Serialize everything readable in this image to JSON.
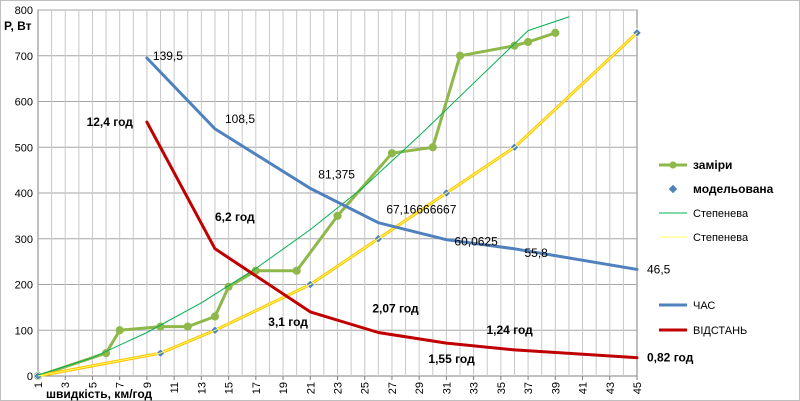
{
  "chart_data": {
    "type": "line",
    "xlabel": "швидкість, км/год",
    "ylabel": "P, Вт",
    "ylim": [
      0,
      800
    ],
    "yticks": [
      0,
      100,
      200,
      300,
      400,
      500,
      600,
      700,
      800
    ],
    "xticks": [
      1,
      3,
      5,
      7,
      9,
      11,
      13,
      15,
      17,
      19,
      21,
      23,
      25,
      27,
      29,
      31,
      33,
      35,
      37,
      39,
      41,
      43,
      45
    ],
    "xlim": [
      1,
      45
    ],
    "grid": true,
    "legend_position": "right",
    "series": [
      {
        "name": "заміри",
        "color": "#8fb84a",
        "marker": "circle",
        "x": [
          1,
          6,
          7,
          10,
          12,
          14,
          15,
          17,
          20,
          23,
          27,
          30,
          32,
          36,
          37,
          39
        ],
        "y": [
          0,
          50,
          100,
          108,
          108,
          130,
          195,
          230,
          230,
          350,
          487,
          500,
          700,
          722,
          730,
          750
        ]
      },
      {
        "name": "модельована",
        "color": "#ffc000",
        "marker": "diamond",
        "marker_color": "#4f81bd",
        "x": [
          1,
          10,
          14,
          21,
          26,
          31,
          36,
          45
        ],
        "y": [
          0,
          50,
          100,
          200,
          300,
          400,
          500,
          750
        ]
      },
      {
        "name": "Степенева",
        "color": "#00b050",
        "style": "trend",
        "x": [
          1,
          5,
          9,
          13,
          17,
          21,
          25,
          29,
          33,
          37,
          40
        ],
        "y": [
          2,
          40,
          95,
          160,
          235,
          320,
          415,
          525,
          640,
          755,
          785
        ]
      },
      {
        "name": "Степенева",
        "color": "#ffff66",
        "style": "trend",
        "x": [
          1,
          10,
          14,
          21,
          26,
          31,
          36,
          45
        ],
        "y": [
          0,
          50,
          100,
          200,
          300,
          400,
          500,
          750
        ]
      },
      {
        "name": "ЧАС",
        "color": "#4f81bd",
        "x": [
          9,
          14,
          21,
          26,
          31,
          36,
          45
        ],
        "y": [
          695,
          540,
          410,
          335,
          298,
          278,
          233
        ]
      },
      {
        "name": "ВІДСТАНЬ",
        "color": "#c00000",
        "x": [
          9,
          14,
          21,
          26,
          31,
          36,
          45
        ],
        "y": [
          555,
          278,
          140,
          95,
          72,
          57,
          40
        ]
      }
    ],
    "annotations": [
      {
        "text": "139,5",
        "x": 9,
        "y": 695,
        "bold": false
      },
      {
        "text": "108,5",
        "x": 14,
        "y": 540,
        "bold": false
      },
      {
        "text": "81,375",
        "x": 21,
        "y": 410,
        "bold": false
      },
      {
        "text": "67,16666667",
        "x": 26,
        "y": 335,
        "bold": false
      },
      {
        "text": "60,0625",
        "x": 31,
        "y": 298,
        "bold": false
      },
      {
        "text": "55,8",
        "x": 36,
        "y": 278,
        "bold": false
      },
      {
        "text": "46,5",
        "x": 45,
        "y": 233,
        "bold": false
      },
      {
        "text": "12,4 год",
        "x": 9,
        "y": 555,
        "bold": true
      },
      {
        "text": "6,2 год",
        "x": 14,
        "y": 278,
        "bold": true
      },
      {
        "text": "3,1 год",
        "x": 21,
        "y": 140,
        "bold": true
      },
      {
        "text": "2,07 год",
        "x": 26,
        "y": 95,
        "bold": true
      },
      {
        "text": "1,55 год",
        "x": 31,
        "y": 72,
        "bold": true
      },
      {
        "text": "1,24 год",
        "x": 36,
        "y": 57,
        "bold": true
      },
      {
        "text": "0,82 год",
        "x": 45,
        "y": 40,
        "bold": true
      }
    ]
  }
}
